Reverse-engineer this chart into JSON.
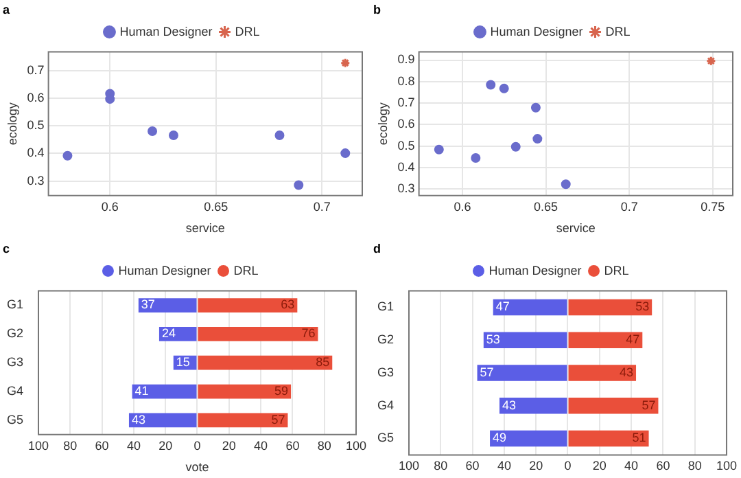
{
  "chart_data": [
    {
      "type": "scatter",
      "title": "a",
      "xlabel": "service",
      "ylabel": "ecology",
      "xlim": [
        0.571,
        0.719
      ],
      "xticks": [
        0.6,
        0.65,
        0.7
      ],
      "ylim": [
        0.247,
        0.769
      ],
      "yticks": [
        0.3,
        0.4,
        0.5,
        0.6,
        0.7
      ],
      "grid": true,
      "legend": "top",
      "series": [
        {
          "name": "Human Designer",
          "color": "#6a6ccc",
          "marker": "circle",
          "x": [
            0.58,
            0.6,
            0.6,
            0.62,
            0.63,
            0.68,
            0.689,
            0.711
          ],
          "values": [
            0.392,
            0.617,
            0.598,
            0.481,
            0.466,
            0.466,
            0.285,
            0.401
          ]
        },
        {
          "name": "DRL",
          "color": "#d8654e",
          "marker": "cross",
          "x": [
            0.711
          ],
          "values": [
            0.729
          ]
        }
      ]
    },
    {
      "type": "scatter",
      "title": "b",
      "xlabel": "service",
      "ylabel": "ecology",
      "xlim": [
        0.574,
        0.762
      ],
      "xticks": [
        0.6,
        0.65,
        0.7,
        0.75
      ],
      "ylim": [
        0.27,
        0.938
      ],
      "yticks": [
        0.3,
        0.4,
        0.5,
        0.6,
        0.7,
        0.8,
        0.9
      ],
      "grid": true,
      "legend": "top",
      "series": [
        {
          "name": "Human Designer",
          "color": "#6a6ccc",
          "marker": "circle",
          "x": [
            0.586,
            0.608,
            0.617,
            0.625,
            0.632,
            0.644,
            0.645,
            0.662
          ],
          "values": [
            0.484,
            0.445,
            0.785,
            0.768,
            0.497,
            0.679,
            0.534,
            0.323
          ]
        },
        {
          "name": "DRL",
          "color": "#d8654e",
          "marker": "cross",
          "x": [
            0.749
          ],
          "values": [
            0.896
          ]
        }
      ]
    },
    {
      "type": "bar",
      "title": "c",
      "orientation": "horizontal",
      "data_labels": true,
      "xlabel": "vote",
      "categories": [
        "G1",
        "G2",
        "G3",
        "G4",
        "G5"
      ],
      "xlim": [
        -100,
        100
      ],
      "xticks": [
        {
          "value": -100,
          "label": "100"
        },
        {
          "value": -80,
          "label": "80"
        },
        {
          "value": -60,
          "label": "60"
        },
        {
          "value": -40,
          "label": "40"
        },
        {
          "value": -20,
          "label": "20"
        },
        0,
        20,
        40,
        60,
        80,
        100
      ],
      "grid": "x",
      "legend": "top",
      "series": [
        {
          "name": "Human Designer",
          "color": "#5b5ee6",
          "values": [
            37,
            24,
            15,
            41,
            43
          ],
          "base": [
            -37,
            -24,
            -15,
            -41,
            -43
          ]
        },
        {
          "name": "DRL",
          "color": "#ea4f3a",
          "values": [
            63,
            76,
            85,
            59,
            57
          ]
        }
      ]
    },
    {
      "type": "bar",
      "title": "d",
      "orientation": "horizontal",
      "data_labels": true,
      "categories": [
        "G1",
        "G2",
        "G3",
        "G4",
        "G5"
      ],
      "xlim": [
        -100,
        100
      ],
      "xticks": [
        {
          "value": -100,
          "label": "100"
        },
        {
          "value": -80,
          "label": "80"
        },
        {
          "value": -60,
          "label": "60"
        },
        {
          "value": -40,
          "label": "40"
        },
        {
          "value": -20,
          "label": "20"
        },
        0,
        20,
        40,
        60,
        80,
        100
      ],
      "grid": "x",
      "legend": "top",
      "series": [
        {
          "name": "Human Designer",
          "color": "#5b5ee6",
          "values": [
            47,
            53,
            57,
            43,
            49
          ],
          "base": [
            -47,
            -53,
            -57,
            -43,
            -49
          ]
        },
        {
          "name": "DRL",
          "color": "#ea4f3a",
          "values": [
            53,
            47,
            43,
            57,
            51
          ]
        }
      ]
    }
  ]
}
